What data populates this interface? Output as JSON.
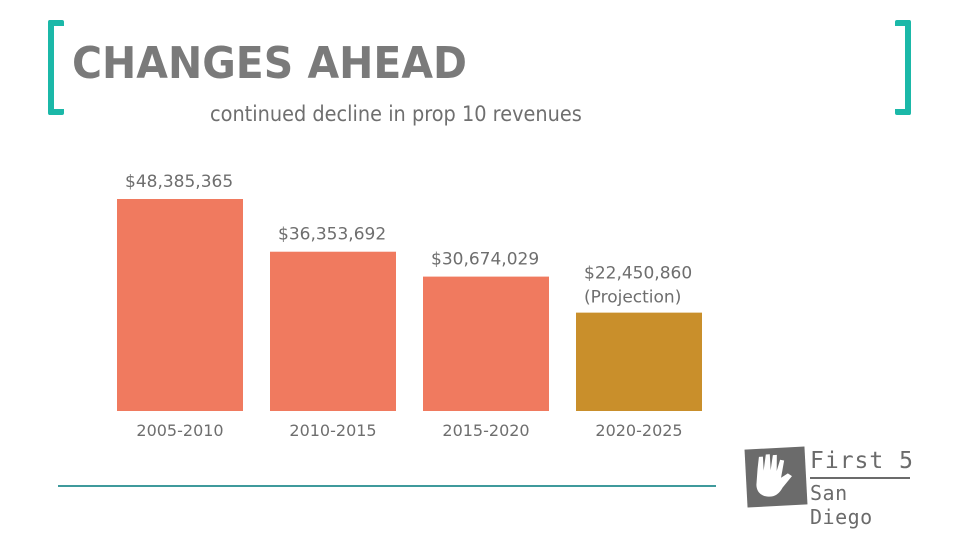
{
  "header": {
    "title": "CHANGES AHEAD",
    "subtitle": "continued decline in prop 10 revenues"
  },
  "colors": {
    "accent": "#1bb8a8",
    "bar_actual": "#f07a5f",
    "bar_projection": "#c98f2b",
    "text": "#6e6e6e",
    "divider": "#3f9a9c"
  },
  "logo": {
    "line1": "First 5",
    "line2": "San Diego"
  },
  "chart_data": {
    "type": "bar",
    "title": "continued decline in prop 10 revenues",
    "xlabel": "",
    "ylabel": "",
    "ylim": [
      0,
      55000000
    ],
    "grid": false,
    "categories": [
      "2005-2010",
      "2010-2015",
      "2015-2020",
      "2020-2025"
    ],
    "values": [
      48385365,
      36353692,
      30674029,
      22450860
    ],
    "data_labels": [
      "$48,385,365",
      "$36,353,692",
      "$30,674,029",
      "$22,450,860"
    ],
    "annotations": [
      "",
      "",
      "",
      "(Projection)"
    ],
    "projected": [
      false,
      false,
      false,
      true
    ]
  }
}
